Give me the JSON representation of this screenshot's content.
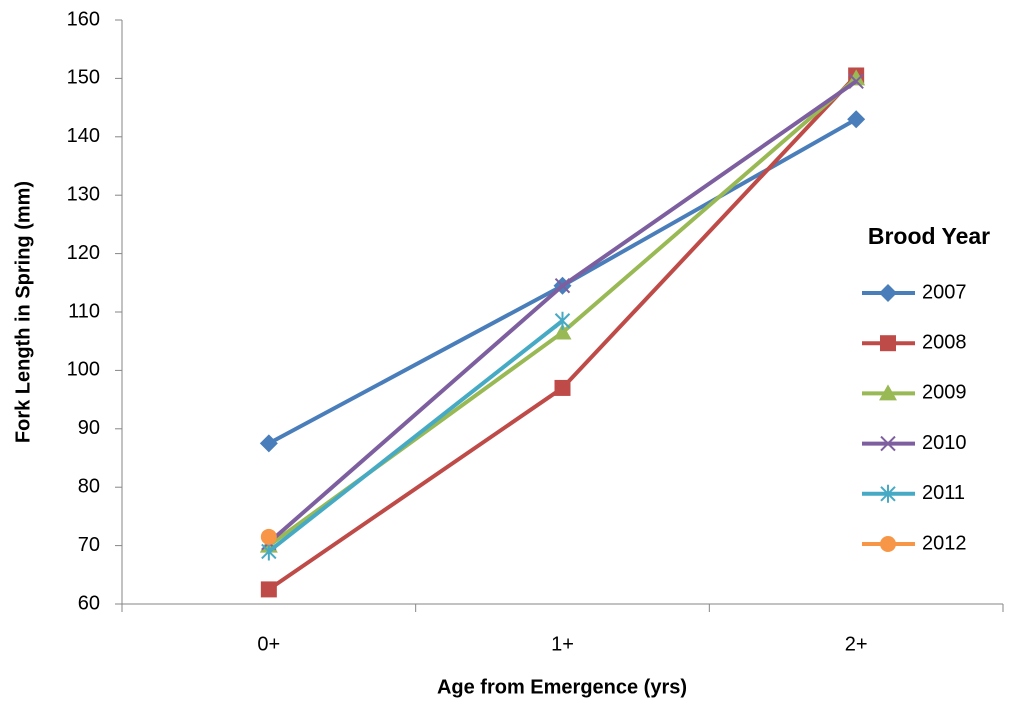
{
  "chart_data": {
    "type": "line",
    "x_label": "Age from Emergence (yrs)",
    "y_label": "Fork Length in Spring  (mm)",
    "legend_title": "Brood Year",
    "legend_position": "right",
    "categories": [
      "0+",
      "1+",
      "2+"
    ],
    "series": [
      {
        "name": "2007",
        "color": "#4a7ebb",
        "marker": "diamond",
        "values": [
          87.5,
          114.5,
          143
        ]
      },
      {
        "name": "2008",
        "color": "#be4b48",
        "marker": "square",
        "values": [
          62.5,
          97,
          150.5
        ]
      },
      {
        "name": "2009",
        "color": "#98b954",
        "marker": "triangle",
        "values": [
          70,
          106.5,
          150
        ]
      },
      {
        "name": "2010",
        "color": "#7d5fa0",
        "marker": "x",
        "values": [
          70.5,
          114.5,
          149.5
        ]
      },
      {
        "name": "2011",
        "color": "#46aac5",
        "marker": "star",
        "values": [
          69,
          108.5,
          null
        ]
      },
      {
        "name": "2012",
        "color": "#f79646",
        "marker": "circle",
        "values": [
          71.5,
          null,
          null
        ]
      }
    ],
    "ylim": [
      60,
      160
    ],
    "yticks": [
      60,
      70,
      80,
      90,
      100,
      110,
      120,
      130,
      140,
      150,
      160
    ],
    "grid": false
  }
}
